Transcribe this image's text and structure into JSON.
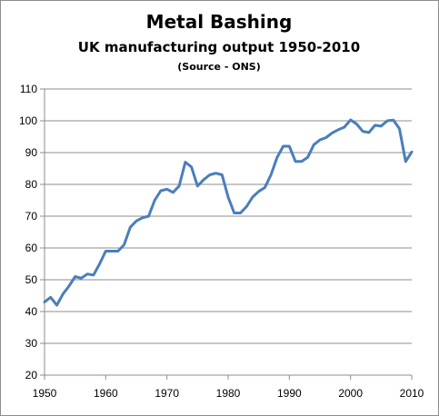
{
  "chart_data": {
    "type": "line",
    "title": "Metal Bashing",
    "subtitle": "UK manufacturing output 1950-2010",
    "source": "(Source - ONS)",
    "xlabel": "",
    "ylabel": "",
    "xlim": [
      1950,
      2010
    ],
    "ylim": [
      20,
      110
    ],
    "xticks": [
      1950,
      1960,
      1970,
      1980,
      1990,
      2000,
      2010
    ],
    "yticks": [
      20,
      30,
      40,
      50,
      60,
      70,
      80,
      90,
      100,
      110
    ],
    "grid": {
      "x": false,
      "y": true
    },
    "legend": "none",
    "line_color": "#4a7ebb",
    "series": [
      {
        "x": [
          1950,
          1951,
          1952,
          1953,
          1954,
          1955,
          1956,
          1957,
          1958,
          1959,
          1960,
          1961,
          1962,
          1963,
          1964,
          1965,
          1966,
          1967,
          1968,
          1969,
          1970,
          1971,
          1972,
          1973,
          1974,
          1975,
          1976,
          1977,
          1978,
          1979,
          1980,
          1981,
          1982,
          1983,
          1984,
          1985,
          1986,
          1987,
          1988,
          1989,
          1990,
          1991,
          1992,
          1993,
          1994,
          1995,
          1996,
          1997,
          1998,
          1999,
          2000,
          2001,
          2002,
          2003,
          2004,
          2005,
          2006,
          2007,
          2008,
          2009,
          2010
        ],
        "values": [
          43,
          44.5,
          42,
          45.5,
          48,
          51,
          50.5,
          51.8,
          51.5,
          55,
          59,
          59,
          59,
          61,
          66.5,
          68.5,
          69.5,
          70,
          75,
          78,
          78.5,
          77.5,
          79.5,
          87,
          85.5,
          79.5,
          81.5,
          83,
          83.5,
          83,
          76,
          71,
          71,
          73,
          76,
          77.8,
          79,
          83,
          88.5,
          92,
          92,
          87.2,
          87.2,
          88.5,
          92.5,
          94,
          94.7,
          96.2,
          97.2,
          98,
          100.3,
          99,
          96.7,
          96.3,
          98.6,
          98.3,
          100,
          100.2,
          97.5,
          87.2,
          90.2
        ]
      }
    ]
  }
}
